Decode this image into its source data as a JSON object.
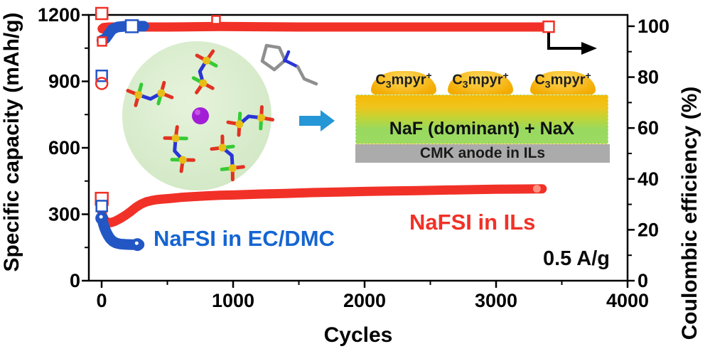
{
  "figure": {
    "axes": {
      "x": {
        "label": "Cycles",
        "min": 0,
        "max": 4000,
        "major_ticks": [
          0,
          1000,
          2000,
          3000,
          4000
        ],
        "minor_ticks": [
          500,
          1500,
          2500,
          3500
        ]
      },
      "y_left": {
        "label": "Specific capacity (mAh/g)",
        "min": 0,
        "max": 1200,
        "major_ticks": [
          0,
          300,
          600,
          900,
          1200
        ],
        "minor_ticks": [
          150,
          450,
          750,
          1050
        ]
      },
      "y_right": {
        "label": "Coulombic efficiency (%)",
        "min": 0,
        "max": 100,
        "major_ticks": [
          0,
          20,
          40,
          60,
          80,
          100
        ],
        "minor_ticks": [
          10,
          30,
          50,
          70,
          90
        ]
      }
    }
  },
  "chart_data": {
    "type": "line",
    "title": "",
    "xlabel": "Cycles",
    "ylabel_left": "Specific capacity (mAh/g)",
    "ylabel_right": "Coulombic efficiency (%)",
    "xlim": [
      0,
      4000
    ],
    "ylim_left": [
      0,
      1200
    ],
    "ylim_right": [
      0,
      100
    ],
    "grid": false,
    "series": [
      {
        "name": "NaFSI in ILs capacity",
        "axis": "left",
        "color": "#f13127",
        "stroke_width": 13,
        "points": [
          [
            2,
            310
          ],
          [
            6,
            296
          ],
          [
            12,
            285
          ],
          [
            25,
            272
          ],
          [
            45,
            264
          ],
          [
            70,
            262
          ],
          [
            100,
            268
          ],
          [
            140,
            280
          ],
          [
            180,
            295
          ],
          [
            220,
            312
          ],
          [
            260,
            331
          ],
          [
            300,
            346
          ],
          [
            340,
            356
          ],
          [
            380,
            362
          ],
          [
            420,
            366
          ],
          [
            470,
            369
          ],
          [
            530,
            372
          ],
          [
            600,
            376
          ],
          [
            700,
            380
          ],
          [
            800,
            383
          ],
          [
            900,
            386
          ],
          [
            1000,
            387
          ],
          [
            1200,
            391
          ],
          [
            1400,
            394
          ],
          [
            1600,
            398
          ],
          [
            1800,
            400
          ],
          [
            2000,
            403
          ],
          [
            2200,
            405
          ],
          [
            2400,
            407
          ],
          [
            2600,
            409
          ],
          [
            2800,
            411
          ],
          [
            3000,
            413
          ],
          [
            3200,
            414
          ],
          [
            3350,
            415
          ]
        ]
      },
      {
        "name": "NaFSI in EC/DMC capacity",
        "axis": "left",
        "color": "#2356c5",
        "stroke_width": 15,
        "points": [
          [
            1,
            282
          ],
          [
            8,
            268
          ],
          [
            15,
            252
          ],
          [
            25,
            235
          ],
          [
            35,
            220
          ],
          [
            50,
            203
          ],
          [
            65,
            190
          ],
          [
            85,
            178
          ],
          [
            110,
            170
          ],
          [
            140,
            166
          ],
          [
            180,
            164
          ],
          [
            230,
            163
          ],
          [
            285,
            163
          ]
        ]
      },
      {
        "name": "NaFSI in ILs coulombic efficiency",
        "axis": "right",
        "color": "#f13127",
        "stroke_width": 13,
        "points": [
          [
            4,
            99.0
          ],
          [
            15,
            99.5
          ],
          [
            60,
            99.7
          ],
          [
            200,
            99.7
          ],
          [
            500,
            99.7
          ],
          [
            900,
            99.9
          ],
          [
            1500,
            99.7
          ],
          [
            2200,
            99.7
          ],
          [
            2900,
            99.7
          ],
          [
            3400,
            99.7
          ]
        ]
      },
      {
        "name": "NaFSI in EC/DMC coulombic efficiency",
        "axis": "right",
        "color": "#2356c5",
        "stroke_width": 15,
        "points": [
          [
            2,
            94.5
          ],
          [
            30,
            95.2
          ],
          [
            55,
            97
          ],
          [
            80,
            98.8
          ],
          [
            120,
            99.7
          ],
          [
            180,
            100
          ],
          [
            240,
            100
          ],
          [
            320,
            100
          ]
        ]
      }
    ],
    "markers": [
      {
        "name": "red first-cycle capacity",
        "shape": "square-open",
        "axis": "left",
        "color": "#f13127",
        "x": 1,
        "v": 370,
        "size": 17
      },
      {
        "name": "blue first-cycle capacity",
        "shape": "square-open",
        "axis": "left",
        "color": "#2356c5",
        "x": 1,
        "v": 337,
        "size": 15
      },
      {
        "name": "blue capacity start point",
        "shape": "circle",
        "axis": "left",
        "color": "#2356c5",
        "x": 1,
        "v": 282,
        "size": 18,
        "glint": true
      },
      {
        "name": "blue capacity end point",
        "shape": "circle",
        "axis": "left",
        "color": "#2356c5",
        "x": 272,
        "v": 163,
        "size": 18,
        "glint": true
      },
      {
        "name": "red capacity end highlight",
        "shape": "circle",
        "axis": "left",
        "color": "#ff9184",
        "x": 3310,
        "v": 415,
        "size": 11
      },
      {
        "name": "red first-cycle CE high",
        "shape": "square-open",
        "axis": "right",
        "color": "#f13127",
        "x": 1,
        "e": 105,
        "size": 16
      },
      {
        "name": "red early CE",
        "shape": "square-open",
        "axis": "right",
        "color": "#f13127",
        "x": 3,
        "e": 94,
        "size": 12
      },
      {
        "name": "blue first-cycle CE",
        "shape": "square-open",
        "axis": "right",
        "color": "#2356c5",
        "x": 1,
        "e": 80.5,
        "size": 15
      },
      {
        "name": "red first-cycle CE low",
        "shape": "circle-open",
        "axis": "right",
        "color": "#f13127",
        "x": 1,
        "e": 77.5,
        "size": 16
      },
      {
        "name": "blue CE band marker",
        "shape": "square-open",
        "axis": "right",
        "color": "#2356c5",
        "x": 230,
        "e": 100,
        "size": 17
      },
      {
        "name": "red CE spike",
        "shape": "square-open",
        "axis": "right",
        "color": "#f13127",
        "x": 870,
        "e": 102.5,
        "size": 11
      },
      {
        "name": "red CE end marker",
        "shape": "square-open",
        "axis": "right",
        "color": "#f13127",
        "x": 3400,
        "e": 99.8,
        "size": 15
      }
    ]
  },
  "annotations": {
    "electrolyte_blue": "NaFSI in EC/DMC",
    "electrolyte_red": "NaFSI in ILs",
    "rate": "0.5 A/g"
  },
  "inset": {
    "cation_label": {
      "pre": "C",
      "sub": "3",
      "mid": "mpyr",
      "sup": "+"
    },
    "sei_layer_label": "NaF (dominant) + NaX",
    "anode_layer_label": "CMK anode in ILs"
  },
  "colors": {
    "red_series": "#f13127",
    "blue_series": "#2356c5",
    "blue_text": "#1565d2",
    "sodium_ion_purple": "#a21fd6",
    "solvation_shell_green": "#d7ebcb",
    "cation_blob_yellow": "#f3ab00",
    "sei_green": "#99d95f",
    "anode_gray": "#ababab",
    "arrow_blue": "#2596d6"
  }
}
